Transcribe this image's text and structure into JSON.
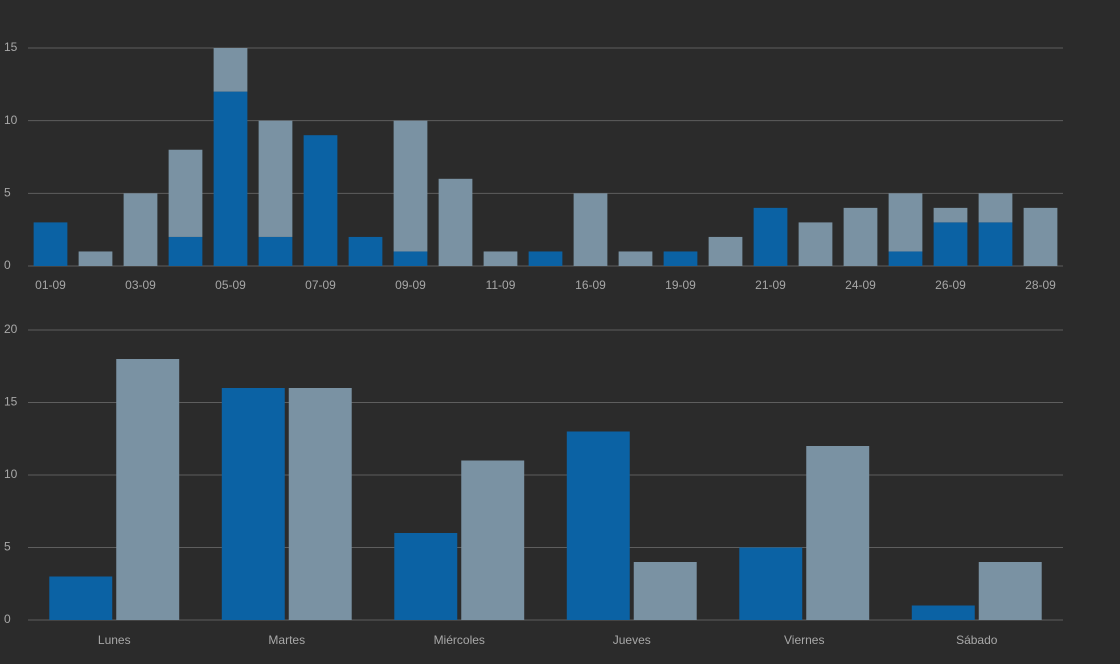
{
  "chart_data": [
    {
      "type": "bar",
      "stacked": true,
      "categories": [
        "01-09",
        null,
        "03-09",
        null,
        "05-09",
        null,
        "07-09",
        null,
        "09-09",
        null,
        "11-09",
        null,
        "16-09",
        null,
        "19-09",
        null,
        "21-09",
        null,
        "24-09",
        null,
        "26-09",
        null,
        "28-09"
      ],
      "series": [
        {
          "color": "#0b62a4",
          "values": [
            3,
            0,
            0,
            2,
            12,
            2,
            9,
            2,
            1,
            0,
            0,
            1,
            0,
            0,
            1,
            0,
            4,
            0,
            0,
            1,
            3,
            3,
            0
          ]
        },
        {
          "color": "#7a92a3",
          "values": [
            0,
            1,
            5,
            6,
            3,
            8,
            0,
            0,
            9,
            6,
            1,
            0,
            5,
            1,
            0,
            2,
            0,
            3,
            4,
            4,
            1,
            2,
            4
          ]
        }
      ],
      "ylim": [
        0,
        15
      ],
      "yticks": [
        0,
        5,
        10,
        15
      ],
      "grid": true
    },
    {
      "type": "bar",
      "stacked": false,
      "categories": [
        "Lunes",
        "Martes",
        "Miércoles",
        "Jueves",
        "Viernes",
        "Sábado"
      ],
      "series": [
        {
          "color": "#0b62a4",
          "values": [
            3,
            16,
            6,
            13,
            5,
            1
          ]
        },
        {
          "color": "#7a92a3",
          "values": [
            18,
            16,
            11,
            4,
            12,
            4
          ]
        }
      ],
      "ylim": [
        0,
        20
      ],
      "yticks": [
        0,
        5,
        10,
        15,
        20
      ],
      "grid": true
    }
  ]
}
